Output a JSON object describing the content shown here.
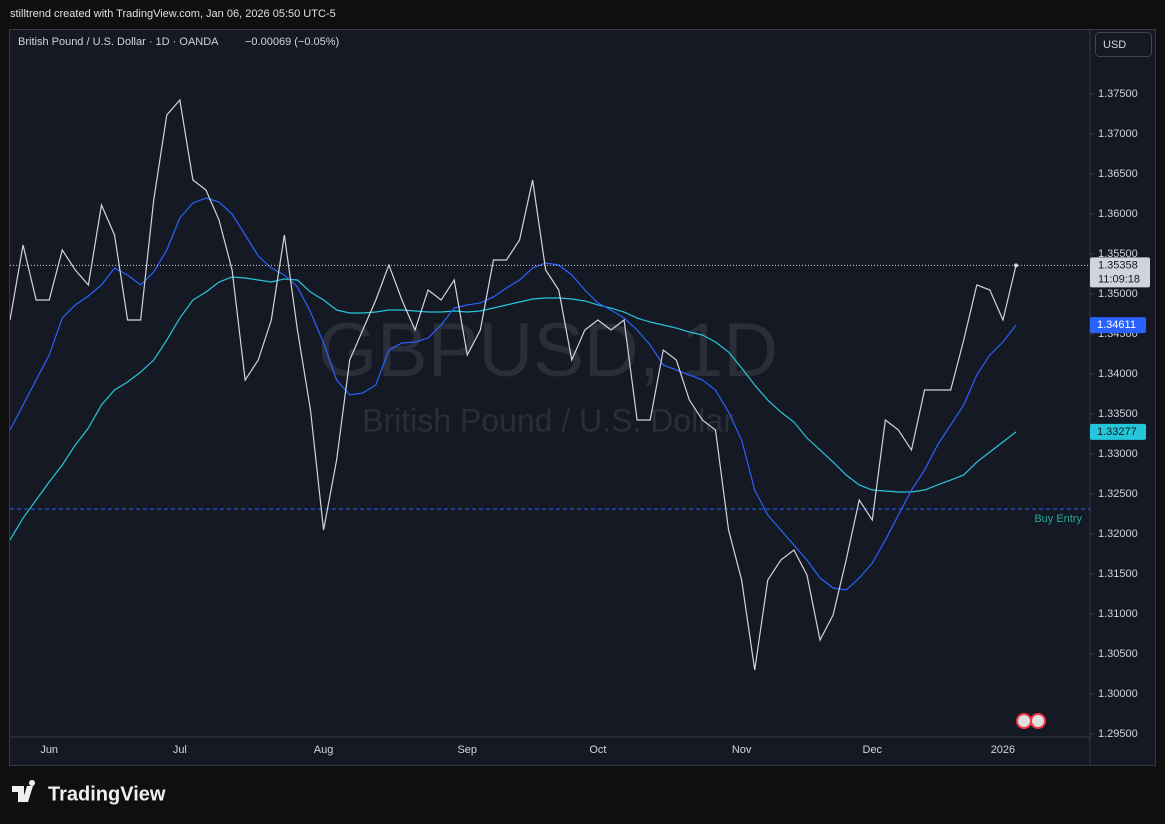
{
  "header": {
    "attribution": "stilltrend created with TradingView.com, Jan 06, 2026 05:50 UTC-5",
    "logo": "TradingView"
  },
  "chart_data": {
    "type": "line",
    "title": "British Pound / U.S. Dollar · 1D · OANDA",
    "change": "−0.00069 (−0.05%)",
    "watermark": [
      "GBPUSD, 1D",
      "British Pound / U.S. Dollar"
    ],
    "currency": "USD",
    "countdown": "11:09:18",
    "categories": [
      null,
      null,
      null,
      "Jun",
      null,
      null,
      null,
      null,
      null,
      null,
      null,
      null,
      null,
      "Jul",
      null,
      null,
      null,
      null,
      null,
      null,
      null,
      null,
      null,
      null,
      "Aug",
      null,
      null,
      null,
      null,
      null,
      null,
      null,
      null,
      null,
      null,
      "Sep",
      null,
      null,
      null,
      null,
      null,
      null,
      null,
      null,
      null,
      "Oct",
      null,
      null,
      null,
      null,
      null,
      null,
      null,
      null,
      null,
      null,
      "Nov",
      null,
      null,
      null,
      null,
      null,
      null,
      null,
      null,
      null,
      "Dec",
      null,
      null,
      null,
      null,
      null,
      null,
      null,
      null,
      null,
      "2026",
      null
    ],
    "series": [
      {
        "name": "GBPUSD",
        "color": "#d1d4dc",
        "values": [
          1.34675,
          1.35613,
          1.34925,
          1.34925,
          1.3555,
          1.353,
          1.35113,
          1.36113,
          1.35738,
          1.34675,
          1.34675,
          1.36175,
          1.37238,
          1.37425,
          1.36425,
          1.363,
          1.35925,
          1.353,
          1.33925,
          1.34175,
          1.34675,
          1.35738,
          1.3455,
          1.3355,
          1.3205,
          1.32925,
          1.34175,
          1.3455,
          1.34925,
          1.35363,
          1.34925,
          1.3455,
          1.3505,
          1.34925,
          1.35175,
          1.34238,
          1.3455,
          1.35425,
          1.35425,
          1.35675,
          1.36425,
          1.353,
          1.3505,
          1.34175,
          1.3455,
          1.34675,
          1.3455,
          1.34675,
          1.33425,
          1.33425,
          1.343,
          1.34175,
          1.33675,
          1.33425,
          1.333,
          1.3205,
          1.31425,
          1.303,
          1.31425,
          1.31675,
          1.318,
          1.31488,
          1.30675,
          1.30988,
          1.31675,
          1.32425,
          1.32175,
          1.33425,
          1.333,
          1.3305,
          1.338,
          1.338,
          1.338,
          1.34425,
          1.35113,
          1.3505,
          1.34675,
          1.35358
        ]
      },
      {
        "name": "MA fast",
        "color": "#2962ff",
        "values": [
          1.333,
          1.33613,
          1.33925,
          1.34238,
          1.347,
          1.34863,
          1.34975,
          1.35113,
          1.35325,
          1.35238,
          1.35113,
          1.35275,
          1.3555,
          1.3595,
          1.36138,
          1.362,
          1.3615,
          1.36,
          1.35738,
          1.35475,
          1.35325,
          1.35238,
          1.35088,
          1.34775,
          1.34388,
          1.33925,
          1.33738,
          1.33763,
          1.33863,
          1.343,
          1.34388,
          1.344,
          1.3445,
          1.34613,
          1.34825,
          1.34863,
          1.34888,
          1.34963,
          1.35075,
          1.35175,
          1.35325,
          1.35388,
          1.35363,
          1.35238,
          1.3505,
          1.34888,
          1.348,
          1.347,
          1.3455,
          1.34363,
          1.34113,
          1.3405,
          1.33988,
          1.33925,
          1.338,
          1.33525,
          1.33175,
          1.3255,
          1.32238,
          1.3205,
          1.31863,
          1.31675,
          1.3145,
          1.31325,
          1.313,
          1.3145,
          1.31638,
          1.31925,
          1.32238,
          1.3255,
          1.328,
          1.33113,
          1.33363,
          1.33613,
          1.33988,
          1.34238,
          1.344,
          1.34611
        ]
      },
      {
        "name": "MA slow",
        "color": "#26c6da",
        "values": [
          1.31925,
          1.322,
          1.32425,
          1.3265,
          1.32863,
          1.33113,
          1.33325,
          1.33613,
          1.338,
          1.339,
          1.34025,
          1.34175,
          1.34425,
          1.347,
          1.34925,
          1.35025,
          1.3515,
          1.35213,
          1.352,
          1.35175,
          1.3515,
          1.35188,
          1.35175,
          1.35025,
          1.34925,
          1.348,
          1.34763,
          1.34763,
          1.34775,
          1.348,
          1.348,
          1.34788,
          1.34775,
          1.34775,
          1.34788,
          1.34775,
          1.34788,
          1.34825,
          1.34863,
          1.349,
          1.34938,
          1.3495,
          1.3495,
          1.34938,
          1.34913,
          1.34863,
          1.34825,
          1.34775,
          1.347,
          1.3465,
          1.34613,
          1.34575,
          1.34525,
          1.34488,
          1.344,
          1.34275,
          1.34075,
          1.33863,
          1.33675,
          1.33525,
          1.334,
          1.332,
          1.3305,
          1.329,
          1.32738,
          1.32613,
          1.3255,
          1.32538,
          1.32525,
          1.32525,
          1.3255,
          1.32613,
          1.32675,
          1.32738,
          1.329,
          1.33025,
          1.3315,
          1.33277
        ]
      }
    ],
    "hlines": [
      {
        "label": "Buy Entry",
        "value": 1.32313,
        "color": "#2962ff"
      }
    ],
    "ylim": [
      1.29463,
      1.383
    ],
    "yticks": [
      {
        "value": 1.295,
        "label": "1.29500"
      },
      {
        "value": 1.3,
        "label": "1.30000"
      },
      {
        "value": 1.305,
        "label": "1.30500"
      },
      {
        "value": 1.31,
        "label": "1.31000"
      },
      {
        "value": 1.315,
        "label": "1.31500"
      },
      {
        "value": 1.32,
        "label": "1.32000"
      },
      {
        "value": 1.325,
        "label": "1.32500"
      },
      {
        "value": 1.33,
        "label": "1.33000"
      },
      {
        "value": 1.335,
        "label": "1.33500"
      },
      {
        "value": 1.34,
        "label": "1.34000"
      },
      {
        "value": 1.345,
        "label": "1.34500"
      },
      {
        "value": 1.35,
        "label": "1.35000"
      },
      {
        "value": 1.355,
        "label": "1.35500"
      },
      {
        "value": 1.36,
        "label": "1.36000"
      },
      {
        "value": 1.365,
        "label": "1.36500"
      },
      {
        "value": 1.37,
        "label": "1.37000"
      },
      {
        "value": 1.375,
        "label": "1.37500"
      }
    ]
  }
}
